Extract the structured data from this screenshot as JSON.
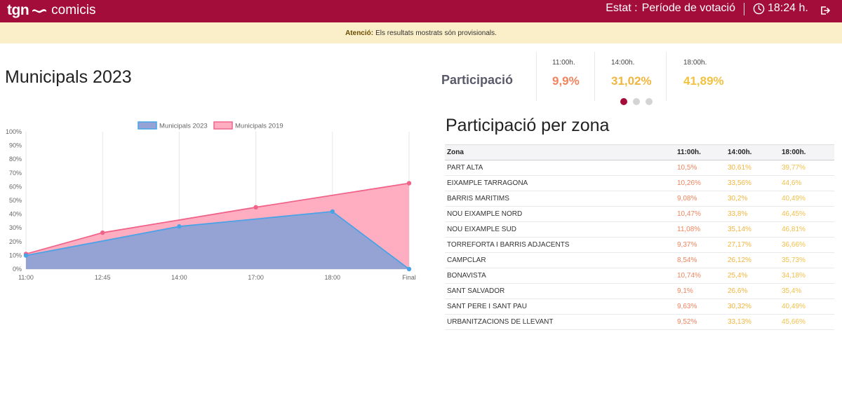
{
  "header": {
    "brand_tgn": "tgn",
    "brand_comicis": "comicis",
    "estat_label": "Estat :",
    "estat_value": "Període de votació",
    "time": "18:24 h.",
    "colors": {
      "bar": "#a30d3a"
    }
  },
  "alert": {
    "label": "Atenció:",
    "message": "Els resultats mostrats són provisionals."
  },
  "title": "Municipals 2023",
  "participation": {
    "title": "Participació",
    "items": [
      {
        "time": "11:00h.",
        "value": "9,9%",
        "color": "#f0845e"
      },
      {
        "time": "14:00h.",
        "value": "31,02%",
        "color": "#f2b53d"
      },
      {
        "time": "18:00h.",
        "value": "41,89%",
        "color": "#f2c13f"
      }
    ],
    "carousel": {
      "count": 3,
      "active": 0
    }
  },
  "zones": {
    "title": "Participació per zona",
    "headers": [
      "Zona",
      "11:00h.",
      "14:00h.",
      "18:00h."
    ],
    "rows": [
      [
        "PART ALTA",
        "10,5%",
        "30,61%",
        "39,77%"
      ],
      [
        "EIXAMPLE TARRAGONA",
        "10,26%",
        "33,56%",
        "44,6%"
      ],
      [
        "BARRIS MARITIMS",
        "9,08%",
        "30,2%",
        "40,49%"
      ],
      [
        "NOU EIXAMPLE NORD",
        "10,47%",
        "33,8%",
        "46,45%"
      ],
      [
        "NOU EIXAMPLE SUD",
        "11,08%",
        "35,14%",
        "46,81%"
      ],
      [
        "TORREFORTA I BARRIS ADJACENTS",
        "9,37%",
        "27,17%",
        "36,66%"
      ],
      [
        "CAMPCLAR",
        "8,54%",
        "26,12%",
        "35,73%"
      ],
      [
        "BONAVISTA",
        "10,74%",
        "25,4%",
        "34,18%"
      ],
      [
        "SANT SALVADOR",
        "9,1%",
        "26,6%",
        "35,4%"
      ],
      [
        "SANT PERE I SANT PAU",
        "9,63%",
        "30,32%",
        "40,49%"
      ],
      [
        "URBANITZACIONS DE LLEVANT",
        "9,52%",
        "33,13%",
        "45,66%"
      ]
    ]
  },
  "chart_data": {
    "type": "area",
    "x": [
      "11:00",
      "12:45",
      "14:00",
      "17:00",
      "18:00",
      "Final"
    ],
    "series": [
      {
        "name": "Municipals 2023",
        "values": [
          9.9,
          null,
          31.02,
          null,
          41.89,
          0
        ],
        "color": "#4aa3e6",
        "fill": "#94a3d4"
      },
      {
        "name": "Municipals 2019",
        "values": [
          11,
          26.5,
          null,
          45,
          null,
          62.5
        ],
        "color": "#f0648a",
        "fill": "#ffadc0"
      }
    ],
    "y_ticks": [
      "0%",
      "10%",
      "20%",
      "30%",
      "40%",
      "50%",
      "60%",
      "70%",
      "80%",
      "90%",
      "100%"
    ],
    "ylim": [
      0,
      100
    ],
    "legend": "top",
    "grid": "vertical"
  }
}
